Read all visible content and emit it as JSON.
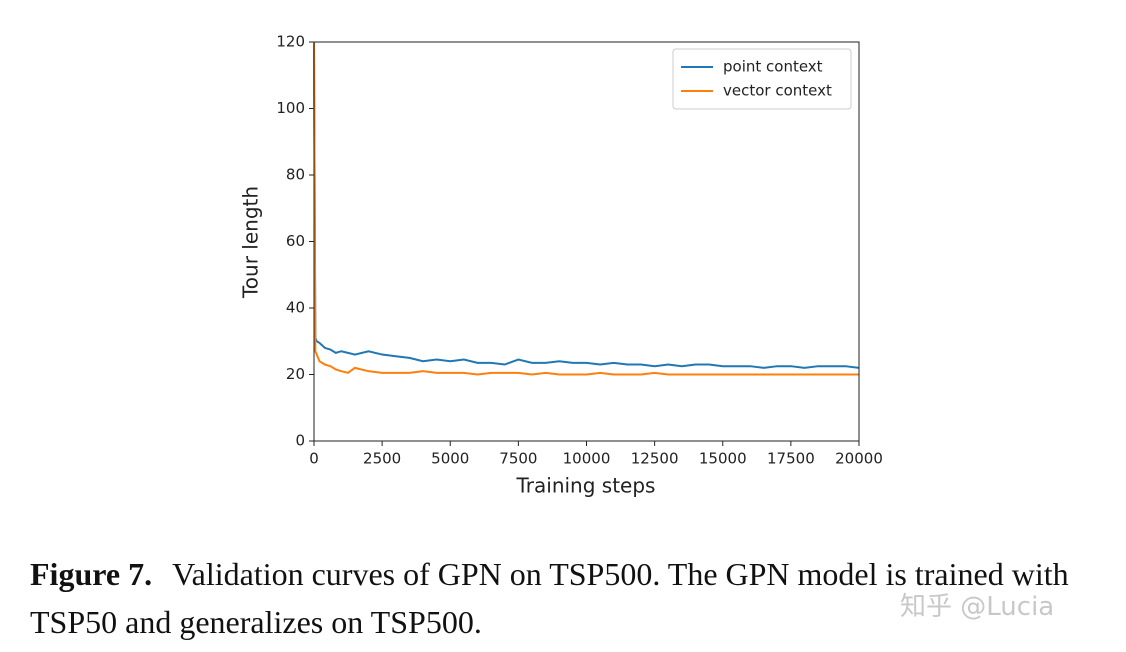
{
  "chart_data": {
    "type": "line",
    "x": [
      0,
      50,
      100,
      200,
      400,
      600,
      800,
      1000,
      1250,
      1500,
      2000,
      2500,
      3000,
      3500,
      4000,
      4500,
      5000,
      5500,
      6000,
      6500,
      7000,
      7500,
      8000,
      8500,
      9000,
      9500,
      10000,
      10500,
      11000,
      11500,
      12000,
      12500,
      13000,
      13500,
      14000,
      14500,
      15000,
      15500,
      16000,
      16500,
      17000,
      17500,
      18000,
      18500,
      19000,
      19500,
      20000
    ],
    "series": [
      {
        "name": "point context",
        "color": "#1f77b4",
        "values": [
          120,
          31,
          30,
          29.5,
          28,
          27.5,
          26.5,
          27,
          26.5,
          26,
          27,
          26,
          25.5,
          25,
          24,
          24.5,
          24,
          24.5,
          23.5,
          23.5,
          23,
          24.5,
          23.5,
          23.5,
          24,
          23.5,
          23.5,
          23,
          23.5,
          23,
          23,
          22.5,
          23,
          22.5,
          23,
          23,
          22.5,
          22.5,
          22.5,
          22,
          22.5,
          22.5,
          22,
          22.5,
          22.5,
          22.5,
          22
        ]
      },
      {
        "name": "vector context",
        "color": "#ff7f0e",
        "values": [
          120,
          27,
          26,
          24,
          23,
          22.5,
          21.5,
          21,
          20.5,
          22,
          21,
          20.5,
          20.5,
          20.5,
          21,
          20.5,
          20.5,
          20.5,
          20,
          20.5,
          20.5,
          20.5,
          20,
          20.5,
          20,
          20,
          20,
          20.5,
          20,
          20,
          20,
          20.5,
          20,
          20,
          20,
          20,
          20,
          20,
          20,
          20,
          20,
          20,
          20,
          20,
          20,
          20,
          20
        ]
      }
    ],
    "xlabel": "Training steps",
    "ylabel": "Tour length",
    "xlim": [
      0,
      20000
    ],
    "xticks": [
      0,
      2500,
      5000,
      7500,
      10000,
      12500,
      15000,
      17500,
      20000
    ],
    "ylim": [
      0,
      120
    ],
    "yticks": [
      0,
      20,
      40,
      60,
      80,
      100,
      120
    ],
    "grid": false,
    "legend": "upper right"
  },
  "caption": {
    "label": "Figure 7.",
    "text": "Validation curves of GPN on TSP500. The GPN model is trained with TSP50 and generalizes on TSP500."
  },
  "watermark": "知乎 @Lucia"
}
